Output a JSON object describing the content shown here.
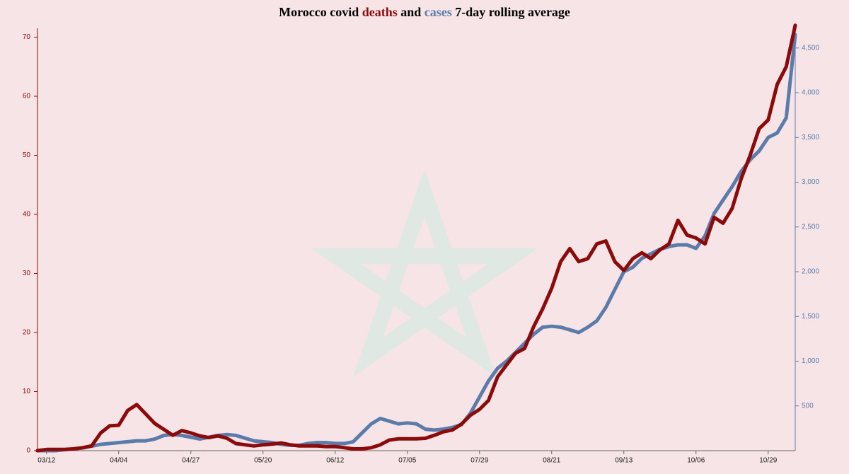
{
  "chart_data": {
    "type": "line",
    "title_lead": "Morocco covid",
    "title_and": "and",
    "title_tail": "7-day rolling average",
    "categories": [
      null,
      "03/12",
      null,
      null,
      null,
      null,
      null,
      null,
      null,
      "04/04",
      null,
      null,
      null,
      null,
      null,
      null,
      null,
      "04/27",
      null,
      null,
      null,
      null,
      null,
      null,
      null,
      "05/20",
      null,
      null,
      null,
      null,
      null,
      null,
      null,
      "06/12",
      null,
      null,
      null,
      null,
      null,
      null,
      null,
      "07/05",
      null,
      null,
      null,
      null,
      null,
      null,
      null,
      "07/29",
      null,
      null,
      null,
      null,
      null,
      null,
      null,
      "08/21",
      null,
      null,
      null,
      null,
      null,
      null,
      null,
      "09/13",
      null,
      null,
      null,
      null,
      null,
      null,
      null,
      "10/06",
      null,
      null,
      null,
      null,
      null,
      null,
      null,
      "10/29",
      null,
      null,
      null
    ],
    "series": [
      {
        "name": "deaths",
        "color": "#8b0a0a",
        "axis": "y",
        "values": [
          0,
          0.2,
          0.2,
          0.2,
          0.3,
          0.5,
          0.8,
          3,
          4.2,
          4.3,
          6.8,
          7.8,
          6.2,
          4.6,
          3.6,
          2.6,
          3.4,
          3,
          2.5,
          2.2,
          2.5,
          2.1,
          1.2,
          1,
          0.8,
          1,
          1.1,
          1.3,
          1,
          0.8,
          0.8,
          0.8,
          0.7,
          0.7,
          0.5,
          0.3,
          0.3,
          0.5,
          1,
          1.8,
          2,
          2,
          2,
          2.1,
          2.6,
          3.2,
          3.5,
          4.5,
          6,
          7,
          8.5,
          12.5,
          14.5,
          16.5,
          17.3,
          21,
          24,
          27.5,
          32,
          34.2,
          32,
          32.5,
          35,
          35.5,
          32,
          30.5,
          32.5,
          33.5,
          32.5,
          34,
          35,
          39,
          36.5,
          36,
          35,
          39.5,
          38.5,
          41,
          46,
          50,
          54.5,
          56,
          62,
          65,
          72
        ]
      },
      {
        "name": "cases",
        "color": "#5b7bab",
        "axis": "y2",
        "values": [
          0,
          0,
          0,
          10,
          20,
          30,
          50,
          70,
          80,
          90,
          100,
          110,
          110,
          130,
          170,
          180,
          170,
          150,
          130,
          150,
          170,
          180,
          170,
          140,
          110,
          100,
          90,
          70,
          60,
          60,
          80,
          90,
          90,
          80,
          80,
          100,
          200,
          300,
          360,
          330,
          300,
          310,
          300,
          240,
          230,
          240,
          260,
          290,
          420,
          600,
          780,
          920,
          1000,
          1100,
          1200,
          1300,
          1380,
          1390,
          1380,
          1350,
          1320,
          1380,
          1450,
          1600,
          1800,
          2000,
          2050,
          2150,
          2200,
          2250,
          2280,
          2300,
          2300,
          2260,
          2400,
          2650,
          2800,
          2950,
          3120,
          3250,
          3350,
          3500,
          3550,
          3720,
          4650
        ]
      }
    ],
    "ylim": [
      0,
      71.5
    ],
    "yticks": [
      0,
      10,
      20,
      30,
      40,
      50,
      60,
      70
    ],
    "y2lim": [
      0,
      4720
    ],
    "y2ticks": [
      {
        "value": 500,
        "label": "500"
      },
      {
        "value": 1000,
        "label": "1,000"
      },
      {
        "value": 1500,
        "label": "1,500"
      },
      {
        "value": 2000,
        "label": "2,000"
      },
      {
        "value": 2500,
        "label": "2,500"
      },
      {
        "value": 3000,
        "label": "3,000"
      },
      {
        "value": 3500,
        "label": "3,500"
      },
      {
        "value": 4000,
        "label": "4,000"
      },
      {
        "value": 4500,
        "label": "4,500"
      }
    ],
    "grid": false
  }
}
